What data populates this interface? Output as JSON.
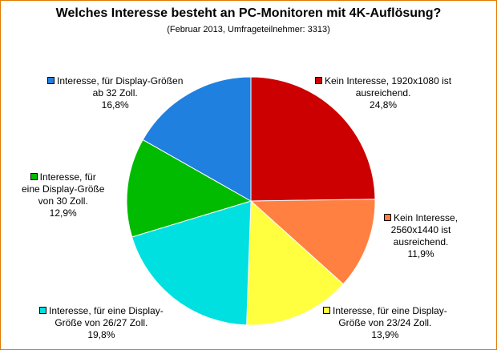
{
  "chart_data": {
    "type": "pie",
    "title": "Welches Interesse besteht an PC-Monitoren mit 4K-Auflösung?",
    "subtitle": "(Februar 2013, Umfrageteilnehmer: 3313)",
    "unit": "%",
    "slices": [
      {
        "lines": [
          "Kein Interesse, 1920x1080 ist",
          "ausreichend."
        ],
        "value": 24.8,
        "value_label": "24,8%",
        "color": "#cc0000"
      },
      {
        "lines": [
          "Kein Interesse,",
          "2560x1440 ist",
          "ausreichend."
        ],
        "value": 11.9,
        "value_label": "11,9%",
        "color": "#ff8040"
      },
      {
        "lines": [
          "Interesse, für eine Display-",
          "Größe von 23/24 Zoll."
        ],
        "value": 13.9,
        "value_label": "13,9%",
        "color": "#ffff40"
      },
      {
        "lines": [
          "Interesse, für eine Display-",
          "Größe von 26/27 Zoll."
        ],
        "value": 19.8,
        "value_label": "19,8%",
        "color": "#00e0e0"
      },
      {
        "lines": [
          "Interesse, für",
          "eine Display-Größe",
          "von 30 Zoll."
        ],
        "value": 12.9,
        "value_label": "12,9%",
        "color": "#00bb00"
      },
      {
        "lines": [
          "Interesse, für Display-Größen",
          "ab 32 Zoll."
        ],
        "value": 16.8,
        "value_label": "16,8%",
        "color": "#2080e0"
      }
    ]
  }
}
